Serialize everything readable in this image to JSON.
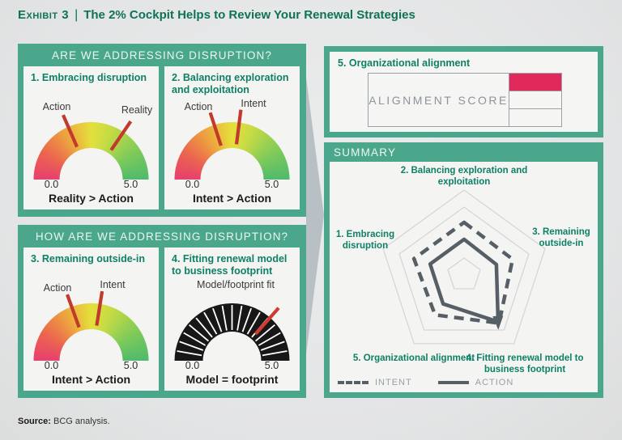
{
  "title": {
    "exhibit": "Exhibit 3",
    "separator": "|",
    "text": "The 2% Cockpit Helps to Review Your Renewal Strategies"
  },
  "source": {
    "label": "Source:",
    "text": "BCG analysis."
  },
  "panels": {
    "addressing": {
      "header": "ARE WE ADDRESSING DISRUPTION?"
    },
    "how_addressing": {
      "header": "HOW ARE WE ADDRESSING DISRUPTION?"
    },
    "alignment": {
      "title": "5. Organizational alignment",
      "score_label": "ALIGNMENT SCORE",
      "cells": [
        "filled",
        "empty",
        "empty"
      ]
    },
    "summary": {
      "header": "SUMMARY"
    }
  },
  "colors": {
    "teal": "#4aa78c",
    "title_green": "#0e7356",
    "item_green": "#0e8165",
    "needle_red": "#c2392e",
    "dark_needle_red": "#d13b2f",
    "gauge_dark": "#171717",
    "score_fill": "#e02a5b",
    "score_border": "#9aa1a7",
    "radar_line": "#575f66",
    "radar_grid": "#d5d6d7",
    "arrow_gray": "#b9c0c5",
    "gauge_gradient": [
      [
        0,
        "#e73f6e"
      ],
      [
        0.16,
        "#eb6450"
      ],
      [
        0.33,
        "#eda23f"
      ],
      [
        0.5,
        "#e5e03c"
      ],
      [
        0.64,
        "#c0da46"
      ],
      [
        0.82,
        "#7fca5a"
      ],
      [
        1,
        "#4fba6d"
      ]
    ]
  },
  "chart_data": [
    {
      "type": "gauge",
      "title": "1. Embracing disruption",
      "style": "gradient",
      "scale": [
        0,
        5
      ],
      "scale_min": "0.0",
      "scale_max": "5.0",
      "needles": [
        {
          "label": "Action",
          "value": 1.85
        },
        {
          "label": "Reality",
          "value": 3.45
        }
      ],
      "caption": "Reality > Action"
    },
    {
      "type": "gauge",
      "title": "2. Balancing exploration and exploitation",
      "style": "gradient",
      "scale": [
        0,
        5
      ],
      "scale_min": "0.0",
      "scale_max": "5.0",
      "needles": [
        {
          "label": "Action",
          "value": 2.0
        },
        {
          "label": "Intent",
          "value": 2.7
        }
      ],
      "caption": "Intent > Action"
    },
    {
      "type": "gauge",
      "title": "3. Remaining outside-in",
      "style": "gradient",
      "scale": [
        0,
        5
      ],
      "scale_min": "0.0",
      "scale_max": "5.0",
      "needles": [
        {
          "label": "Action",
          "value": 1.95
        },
        {
          "label": "Intent",
          "value": 2.75
        }
      ],
      "caption": "Intent > Action"
    },
    {
      "type": "gauge",
      "title": "4. Fitting renewal model to business footprint",
      "style": "dark",
      "scale": [
        0,
        5
      ],
      "scale_min": "0.0",
      "scale_max": "5.0",
      "needles": [
        {
          "label": "Model/footprint fit",
          "value": 3.65
        }
      ],
      "caption": "Model = footprint"
    },
    {
      "type": "radar",
      "axes": [
        "2. Balancing exploration and exploitation",
        "3. Remaining outside-in",
        "4. Fitting renewal model to business footprint",
        "5. Organizational alignment",
        "1. Embracing disruption"
      ],
      "scale": [
        0,
        5
      ],
      "ring_values": [
        5,
        4,
        1
      ],
      "grid": "pentagon",
      "legend_position": "bottom-left",
      "series": [
        {
          "name": "INTENT",
          "style": "dashed",
          "values": [
            3.1,
            3.0,
            3.5,
            2.9,
            3.1
          ]
        },
        {
          "name": "ACTION",
          "style": "solid",
          "arrow_axis": 2,
          "values": [
            2.1,
            2.0,
            3.4,
            2.1,
            2.1
          ]
        }
      ]
    }
  ]
}
